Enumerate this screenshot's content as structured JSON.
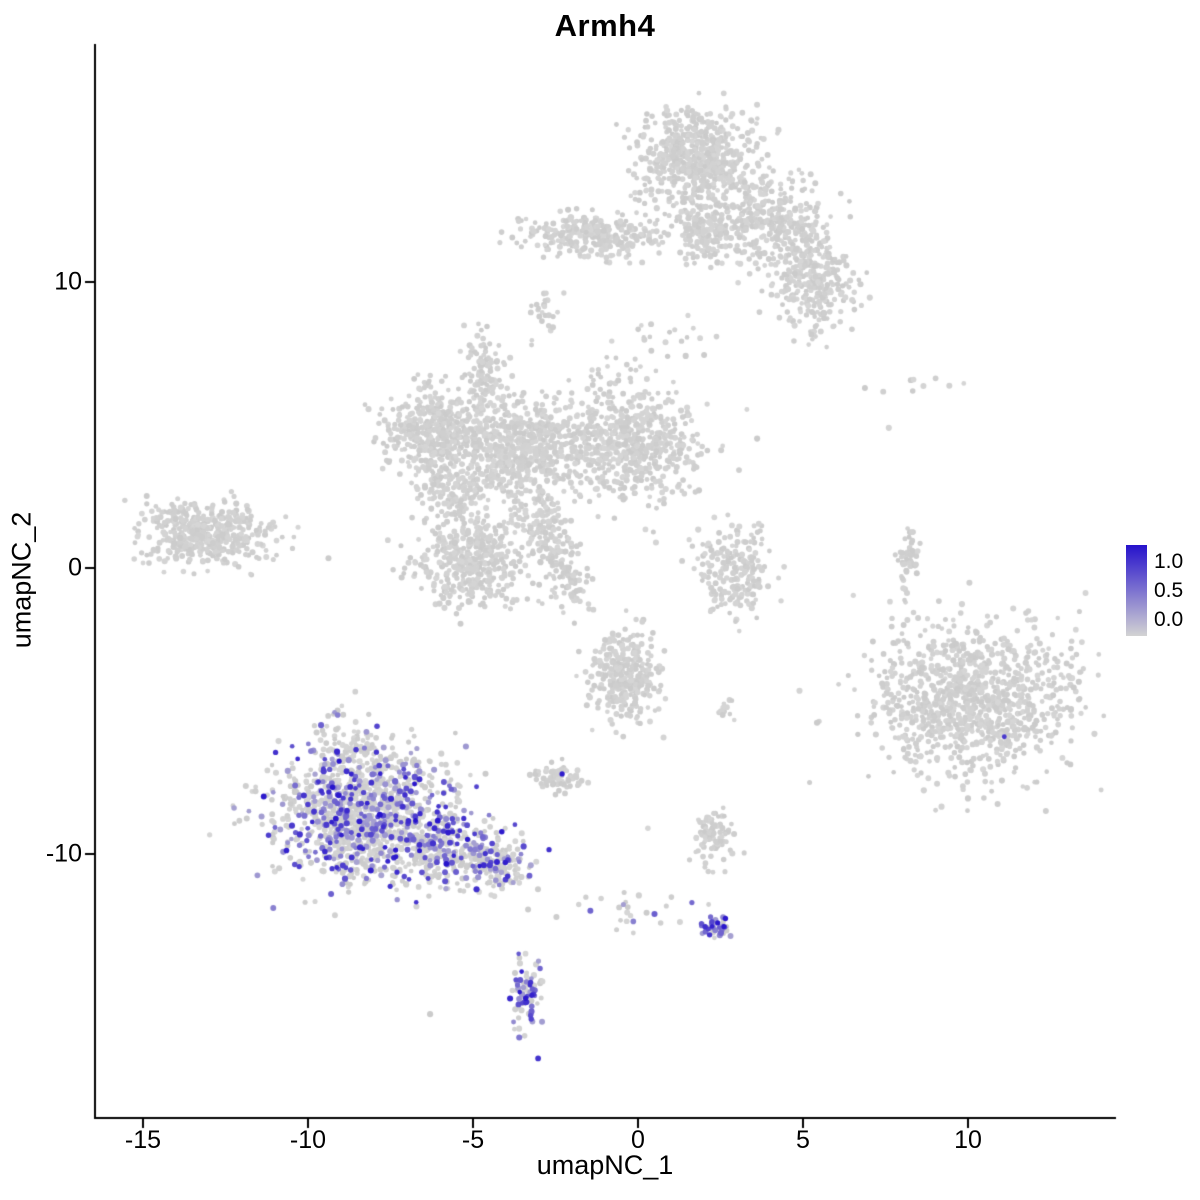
{
  "chart_data": {
    "type": "scatter",
    "title": "Armh4",
    "xlabel": "umapNC_1",
    "ylabel": "umapNC_2",
    "xlim": [
      -16.4,
      14.5
    ],
    "ylim": [
      -19.2,
      18.3
    ],
    "grid": false,
    "background": "#ffffff",
    "x_ticks": [
      {
        "label": "-15",
        "value": -15
      },
      {
        "label": "-10",
        "value": -10
      },
      {
        "label": "-5",
        "value": -5
      },
      {
        "label": "0",
        "value": 0
      },
      {
        "label": "5",
        "value": 5
      },
      {
        "label": "10",
        "value": 10
      }
    ],
    "y_ticks": [
      {
        "label": "10",
        "value": 10
      },
      {
        "label": "0",
        "value": 0
      },
      {
        "label": "-10",
        "value": -10
      }
    ],
    "legend": {
      "position": "right",
      "labels": [
        "1.0",
        "0.5",
        "0.0"
      ],
      "values": [
        1.0,
        0.5,
        0.0
      ],
      "color_high": "#2612CC",
      "color_low": "#D3D3D3"
    },
    "point_color_low": "#D3D3D3",
    "point_color_high": "#2612CC",
    "clusters": [
      {
        "cx": 1.8,
        "cy": 14.3,
        "sx": 0.85,
        "sy": 0.85,
        "n": 620
      },
      {
        "cx": 2.05,
        "cy": 11.9,
        "sx": 0.4,
        "sy": 0.6,
        "n": 150
      },
      {
        "cx": 4.0,
        "cy": 12.1,
        "sx": 0.85,
        "sy": 0.8,
        "n": 340
      },
      {
        "cx": 5.3,
        "cy": 10.1,
        "sx": 0.6,
        "sy": 0.95,
        "n": 300
      },
      {
        "cx": -1.2,
        "cy": 11.6,
        "sx": 1.25,
        "sy": 0.38,
        "n": 300
      },
      {
        "cx": -3.0,
        "cy": 9.0,
        "sx": 0.25,
        "sy": 0.3,
        "n": 12
      },
      {
        "cx": 1.2,
        "cy": 7.9,
        "sx": 0.7,
        "sy": 0.6,
        "n": 18
      },
      {
        "cx": -6.1,
        "cy": 4.8,
        "sx": 0.8,
        "sy": 0.85,
        "n": 460
      },
      {
        "cx": -5.5,
        "cy": 2.6,
        "sx": 0.5,
        "sy": 0.55,
        "n": 130
      },
      {
        "cx": -3.4,
        "cy": 4.2,
        "sx": 0.95,
        "sy": 0.9,
        "n": 620
      },
      {
        "cx": -4.6,
        "cy": 7.0,
        "sx": 0.3,
        "sy": 0.65,
        "n": 90
      },
      {
        "cx": -0.2,
        "cy": 4.3,
        "sx": 1.0,
        "sy": 0.9,
        "n": 560
      },
      {
        "cx": -2.9,
        "cy": 8.8,
        "sx": 0.3,
        "sy": 0.5,
        "n": 12
      },
      {
        "cx": -0.5,
        "cy": 6.6,
        "sx": 0.6,
        "sy": 0.7,
        "n": 25
      },
      {
        "cx": -3.0,
        "cy": 1.6,
        "sx": 0.4,
        "sy": 0.45,
        "n": 90
      },
      {
        "cx": -2.4,
        "cy": 0.4,
        "sx": 0.35,
        "sy": 0.5,
        "n": 70
      },
      {
        "cx": -2.0,
        "cy": -0.7,
        "sx": 0.3,
        "sy": 0.4,
        "n": 50
      },
      {
        "cx": -5.0,
        "cy": 0.3,
        "sx": 0.85,
        "sy": 0.8,
        "n": 430
      },
      {
        "cx": -13.1,
        "cy": 1.2,
        "sx": 1.0,
        "sy": 0.55,
        "n": 430
      },
      {
        "cx": 3.0,
        "cy": -0.1,
        "sx": 0.6,
        "sy": 0.8,
        "n": 210
      },
      {
        "cx": 8.2,
        "cy": 0.3,
        "sx": 0.18,
        "sy": 0.65,
        "n": 55
      },
      {
        "cx": 8.8,
        "cy": 6.5,
        "sx": 1.1,
        "sy": 0.2,
        "n": 9
      },
      {
        "cx": 10.3,
        "cy": -4.6,
        "sx": 1.5,
        "sy": 1.35,
        "n": 1050
      },
      {
        "cx": -0.4,
        "cy": -3.7,
        "sx": 0.5,
        "sy": 0.85,
        "n": 330
      },
      {
        "cx": 2.7,
        "cy": -5.0,
        "sx": 0.2,
        "sy": 0.2,
        "n": 12
      },
      {
        "cx": -8.3,
        "cy": -8.6,
        "sx": 1.35,
        "sy": 1.1,
        "n": 1150,
        "ef": 0.3
      },
      {
        "cx": -5.7,
        "cy": -9.9,
        "sx": 0.9,
        "sy": 0.6,
        "n": 280,
        "ef": 0.35
      },
      {
        "cx": -4.3,
        "cy": -10.5,
        "sx": 0.5,
        "sy": 0.45,
        "n": 120,
        "ef": 0.3
      },
      {
        "cx": -8.9,
        "cy": -6.3,
        "sx": 0.5,
        "sy": 0.6,
        "n": 90,
        "ef": 0.08
      },
      {
        "cx": -2.4,
        "cy": -7.3,
        "sx": 0.38,
        "sy": 0.3,
        "n": 70
      },
      {
        "cx": 2.3,
        "cy": -9.3,
        "sx": 0.3,
        "sy": 0.5,
        "n": 90
      },
      {
        "cx": 0.2,
        "cy": -11.9,
        "sx": 1.0,
        "sy": 0.35,
        "n": 25,
        "ef": 0.15
      },
      {
        "cx": 2.35,
        "cy": -12.6,
        "sx": 0.3,
        "sy": 0.22,
        "n": 40,
        "ef": 0.5
      },
      {
        "cx": -3.4,
        "cy": -14.8,
        "sx": 0.22,
        "sy": 0.65,
        "n": 85,
        "ef": 0.5
      }
    ],
    "singles": [
      {
        "x": -6.3,
        "y": -15.6,
        "v": 0
      },
      {
        "x": -2.3,
        "y": -7.2,
        "v": 0.95
      },
      {
        "x": 11.1,
        "y": -5.9,
        "v": 0.8
      },
      {
        "x": 0.3,
        "y": -9.1,
        "v": 0
      },
      {
        "x": 5.2,
        "y": -7.5,
        "v": 0
      },
      {
        "x": 7.6,
        "y": 4.9,
        "v": 0
      },
      {
        "x": 0.5,
        "y": -12.1,
        "v": 0.6
      }
    ]
  }
}
